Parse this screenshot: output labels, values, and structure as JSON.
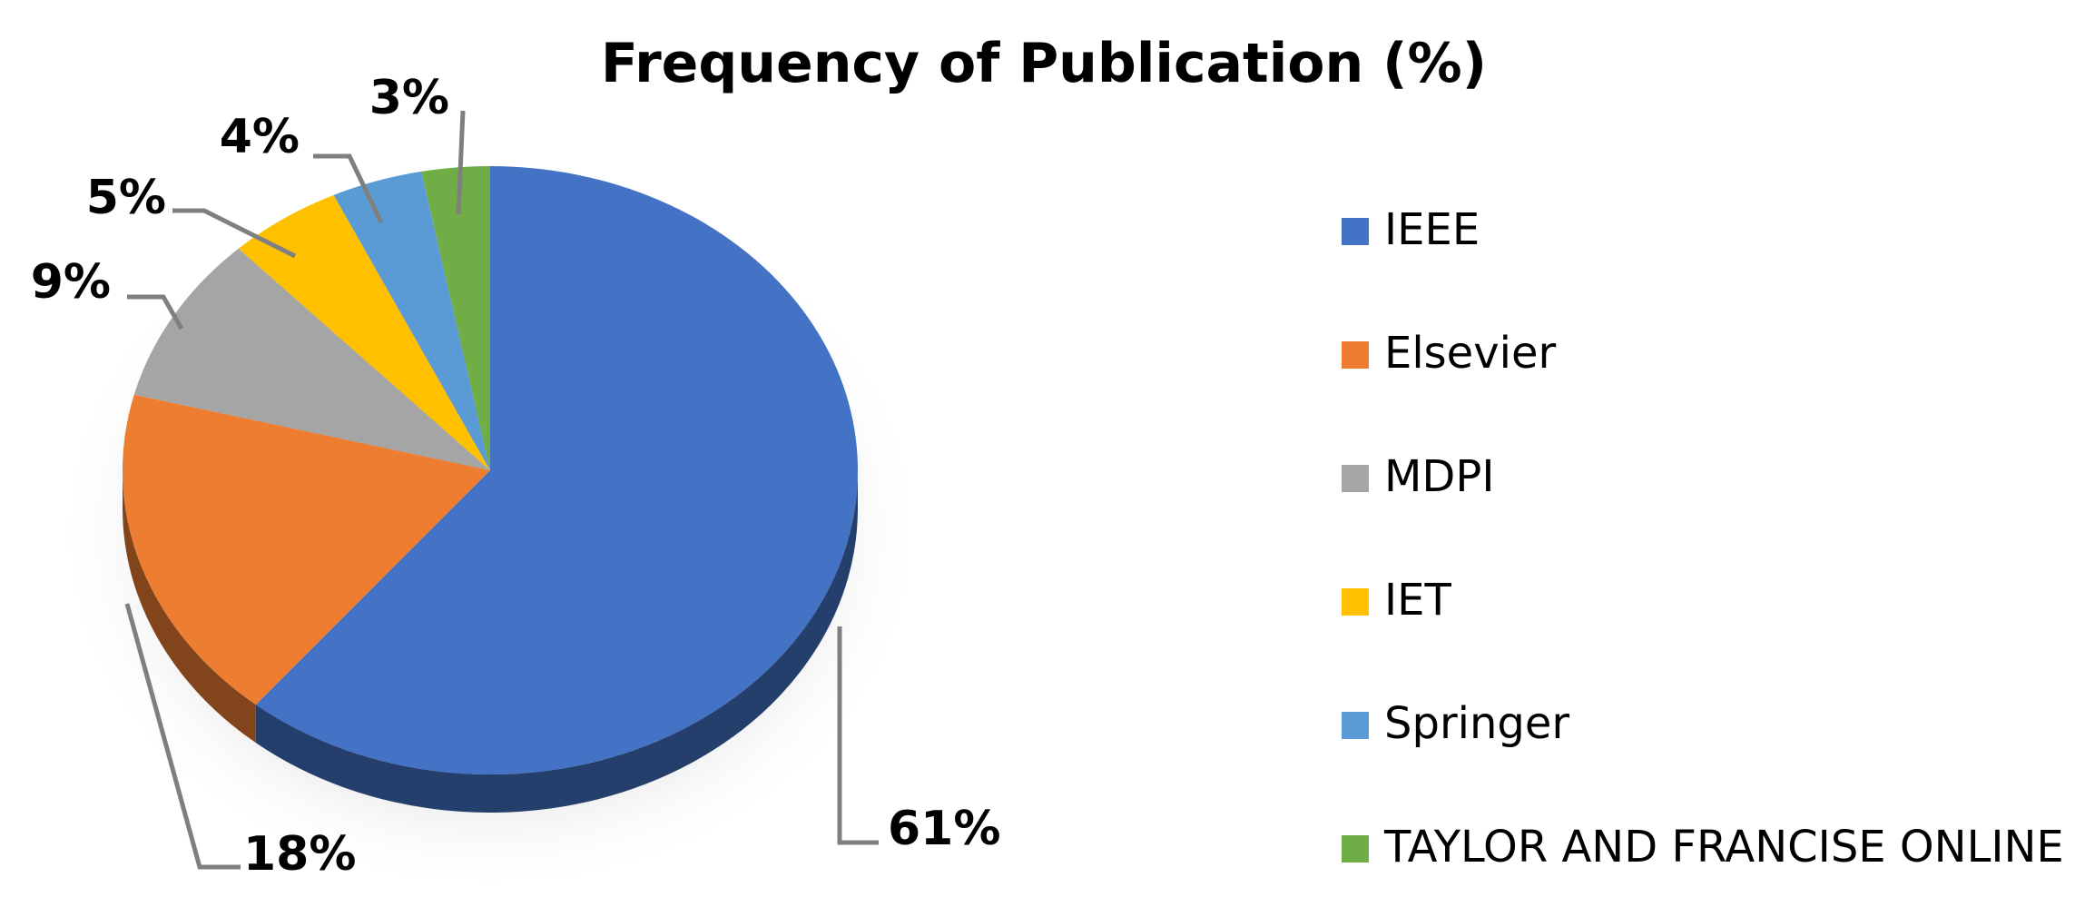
{
  "chart_data": {
    "type": "pie",
    "title": "Frequency of Publication (%)",
    "categories": [
      "IEEE",
      "Elsevier",
      "MDPI",
      "IET",
      "Springer",
      "TAYLOR AND FRANCISE ONLINE"
    ],
    "values": [
      61,
      18,
      9,
      5,
      4,
      3
    ],
    "data_labels": [
      "61%",
      "18%",
      "9%",
      "5%",
      "4%",
      "3%"
    ],
    "colors": [
      "#4472C4",
      "#ED7D31",
      "#A5A5A5",
      "#FFC000",
      "#5B9BD5",
      "#70AD47"
    ],
    "legend_position": "right",
    "style": "3d"
  }
}
